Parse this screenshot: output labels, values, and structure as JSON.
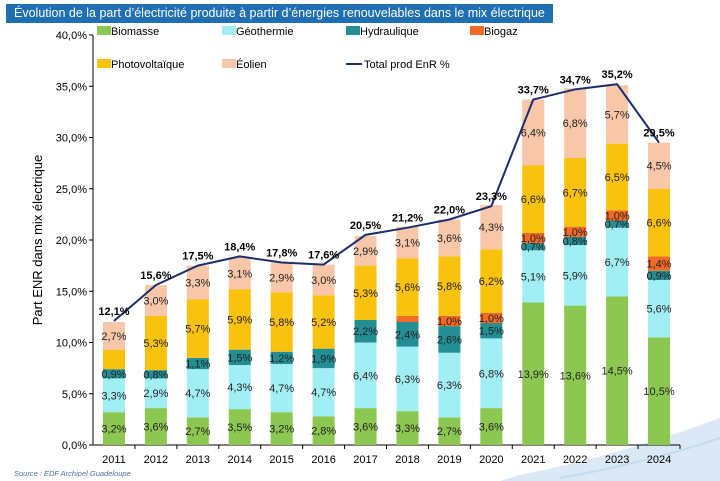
{
  "chart_data": {
    "type": "bar",
    "stacked": true,
    "title": "Évolution de la part d’électricité produite à partir d’énergies renouvelables dans le mix électrique",
    "ylabel": "Part ENR dans mix électrique",
    "xlabel": "",
    "ylim": [
      0,
      40
    ],
    "y_ticks": [
      "0,0%",
      "5,0%",
      "10,0%",
      "15,0%",
      "20,0%",
      "25,0%",
      "30,0%",
      "35,0%",
      "40,0%"
    ],
    "categories": [
      "2011",
      "2012",
      "2013",
      "2014",
      "2015",
      "2016",
      "2017",
      "2018",
      "2019",
      "2020",
      "2021",
      "2022",
      "2023",
      "2024"
    ],
    "series": [
      {
        "name": "Biomasse",
        "color": "#8cc751",
        "values": [
          3.2,
          3.6,
          2.7,
          3.5,
          3.2,
          2.8,
          3.6,
          3.3,
          2.7,
          3.6,
          13.9,
          13.6,
          14.5,
          10.5
        ],
        "labels": [
          "3,2%",
          "3,6%",
          "2,7%",
          "3,5%",
          "3,2%",
          "2,8%",
          "3,6%",
          "3,3%",
          "2,7%",
          "3,6%",
          "13,9%",
          "13,6%",
          "14,5%",
          "10,5%"
        ]
      },
      {
        "name": "Géothermie",
        "color": "#a2eef5",
        "values": [
          3.3,
          2.9,
          4.7,
          4.3,
          4.7,
          4.7,
          6.4,
          6.3,
          6.3,
          6.8,
          5.1,
          5.9,
          6.7,
          5.6
        ],
        "labels": [
          "3,3%",
          "2,9%",
          "4,7%",
          "4,3%",
          "4,7%",
          "4,7%",
          "6,4%",
          "6,3%",
          "6,3%",
          "6,8%",
          "5,1%",
          "5,9%",
          "6,7%",
          "5,6%"
        ]
      },
      {
        "name": "Hydraulique",
        "color": "#238f94",
        "values": [
          0.9,
          0.8,
          1.1,
          1.5,
          1.2,
          1.9,
          2.2,
          2.4,
          2.6,
          1.5,
          0.7,
          0.8,
          0.7,
          0.9
        ],
        "labels": [
          "0,9%",
          "0,8%",
          "1,1%",
          "1,5%",
          "1,2%",
          "1,9%",
          "2,2%",
          "2,4%",
          "2,6%",
          "1,5%",
          "0,7%",
          "0,8%",
          "0,7%",
          "0,9%"
        ]
      },
      {
        "name": "Biogaz",
        "color": "#f26a24",
        "values": [
          0,
          0,
          0,
          0,
          0,
          0,
          0,
          0.6,
          1.0,
          1.0,
          1.0,
          1.0,
          1.0,
          1.4
        ],
        "labels": [
          "",
          "",
          "",
          "",
          "",
          "",
          "",
          "",
          "1,0%",
          "1,0%",
          "1,0%",
          "1,0%",
          "1,0%",
          "1,4%"
        ]
      },
      {
        "name": "Photovoltaïque",
        "color": "#f9c20e",
        "values": [
          1.9,
          5.3,
          5.7,
          5.9,
          5.8,
          5.2,
          5.3,
          5.6,
          5.8,
          6.2,
          6.6,
          6.7,
          6.5,
          6.6
        ],
        "labels": [
          "",
          "5,3%",
          "5,7%",
          "5,9%",
          "5,8%",
          "5,2%",
          "5,3%",
          "5,6%",
          "5,8%",
          "6,2%",
          "6,6%",
          "6,7%",
          "6,5%",
          "6,6%"
        ]
      },
      {
        "name": "Éolien",
        "color": "#f8c6a8",
        "values": [
          2.7,
          3.0,
          3.3,
          3.1,
          2.9,
          3.0,
          2.9,
          3.1,
          3.6,
          4.3,
          6.4,
          6.8,
          5.7,
          4.5
        ],
        "labels": [
          "2,7%",
          "3,0%",
          "3,3%",
          "3,1%",
          "2,9%",
          "3,0%",
          "2,9%",
          "3,1%",
          "3,6%",
          "4,3%",
          "6,4%",
          "6,8%",
          "5,7%",
          "4,5%"
        ]
      }
    ],
    "total": {
      "name": "Total prod EnR %",
      "color": "#1b2f6e",
      "values": [
        12.1,
        15.6,
        17.5,
        18.4,
        17.8,
        17.6,
        20.5,
        21.2,
        22.0,
        23.3,
        33.7,
        34.7,
        35.2,
        29.5
      ],
      "labels": [
        "12,1%",
        "15,6%",
        "17,5%",
        "18,4%",
        "17,8%",
        "17,6%",
        "20,5%",
        "21,2%",
        "22,0%",
        "23,3%",
        "33,7%",
        "34,7%",
        "35,2%",
        "29,5%"
      ]
    },
    "legend_position": "top",
    "grid": false
  },
  "source": "Source : EDF Archipel Guadeloupe"
}
